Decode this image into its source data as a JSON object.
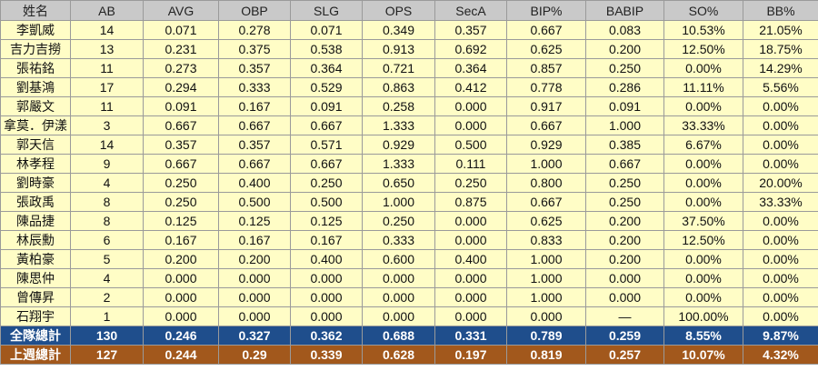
{
  "headers": [
    "姓名",
    "AB",
    "AVG",
    "OBP",
    "SLG",
    "OPS",
    "SecA",
    "BIP%",
    "BABIP",
    "SO%",
    "BB%"
  ],
  "rows": [
    [
      "李凱威",
      "14",
      "0.071",
      "0.278",
      "0.071",
      "0.349",
      "0.357",
      "0.667",
      "0.083",
      "10.53%",
      "21.05%"
    ],
    [
      "吉力吉撈",
      "13",
      "0.231",
      "0.375",
      "0.538",
      "0.913",
      "0.692",
      "0.625",
      "0.200",
      "12.50%",
      "18.75%"
    ],
    [
      "張祐銘",
      "11",
      "0.273",
      "0.357",
      "0.364",
      "0.721",
      "0.364",
      "0.857",
      "0.250",
      "0.00%",
      "14.29%"
    ],
    [
      "劉基鴻",
      "17",
      "0.294",
      "0.333",
      "0.529",
      "0.863",
      "0.412",
      "0.778",
      "0.286",
      "11.11%",
      "5.56%"
    ],
    [
      "郭嚴文",
      "11",
      "0.091",
      "0.167",
      "0.091",
      "0.258",
      "0.000",
      "0.917",
      "0.091",
      "0.00%",
      "0.00%"
    ],
    [
      "拿莫．伊漾",
      "3",
      "0.667",
      "0.667",
      "0.667",
      "1.333",
      "0.000",
      "0.667",
      "1.000",
      "33.33%",
      "0.00%"
    ],
    [
      "郭天信",
      "14",
      "0.357",
      "0.357",
      "0.571",
      "0.929",
      "0.500",
      "0.929",
      "0.385",
      "6.67%",
      "0.00%"
    ],
    [
      "林孝程",
      "9",
      "0.667",
      "0.667",
      "0.667",
      "1.333",
      "0.111",
      "1.000",
      "0.667",
      "0.00%",
      "0.00%"
    ],
    [
      "劉時豪",
      "4",
      "0.250",
      "0.400",
      "0.250",
      "0.650",
      "0.250",
      "0.800",
      "0.250",
      "0.00%",
      "20.00%"
    ],
    [
      "張政禹",
      "8",
      "0.250",
      "0.500",
      "0.500",
      "1.000",
      "0.875",
      "0.667",
      "0.250",
      "0.00%",
      "33.33%"
    ],
    [
      "陳品捷",
      "8",
      "0.125",
      "0.125",
      "0.125",
      "0.250",
      "0.000",
      "0.625",
      "0.200",
      "37.50%",
      "0.00%"
    ],
    [
      "林辰勳",
      "6",
      "0.167",
      "0.167",
      "0.167",
      "0.333",
      "0.000",
      "0.833",
      "0.200",
      "12.50%",
      "0.00%"
    ],
    [
      "黃柏豪",
      "5",
      "0.200",
      "0.200",
      "0.400",
      "0.600",
      "0.400",
      "1.000",
      "0.200",
      "0.00%",
      "0.00%"
    ],
    [
      "陳思仲",
      "4",
      "0.000",
      "0.000",
      "0.000",
      "0.000",
      "0.000",
      "1.000",
      "0.000",
      "0.00%",
      "0.00%"
    ],
    [
      "曾傳昇",
      "2",
      "0.000",
      "0.000",
      "0.000",
      "0.000",
      "0.000",
      "1.000",
      "0.000",
      "0.00%",
      "0.00%"
    ],
    [
      "石翔宇",
      "1",
      "0.000",
      "0.000",
      "0.000",
      "0.000",
      "0.000",
      "0.000",
      "—",
      "100.00%",
      "0.00%"
    ]
  ],
  "totals": [
    {
      "row_name": "total",
      "cells": [
        "全隊總計",
        "130",
        "0.246",
        "0.327",
        "0.362",
        "0.688",
        "0.331",
        "0.789",
        "0.259",
        "8.55%",
        "9.87%"
      ]
    },
    {
      "row_name": "lastweek",
      "cells": [
        "上週總計",
        "127",
        "0.244",
        "0.29",
        "0.339",
        "0.628",
        "0.197",
        "0.819",
        "0.257",
        "10.07%",
        "4.32%"
      ]
    }
  ],
  "colors": {
    "header_bg": "#c9c9c9",
    "body_bg": "#fffdc6",
    "total_bg": "#1f4e8c",
    "lastweek_bg": "#a2581c",
    "grid": "#9a9a9a"
  }
}
